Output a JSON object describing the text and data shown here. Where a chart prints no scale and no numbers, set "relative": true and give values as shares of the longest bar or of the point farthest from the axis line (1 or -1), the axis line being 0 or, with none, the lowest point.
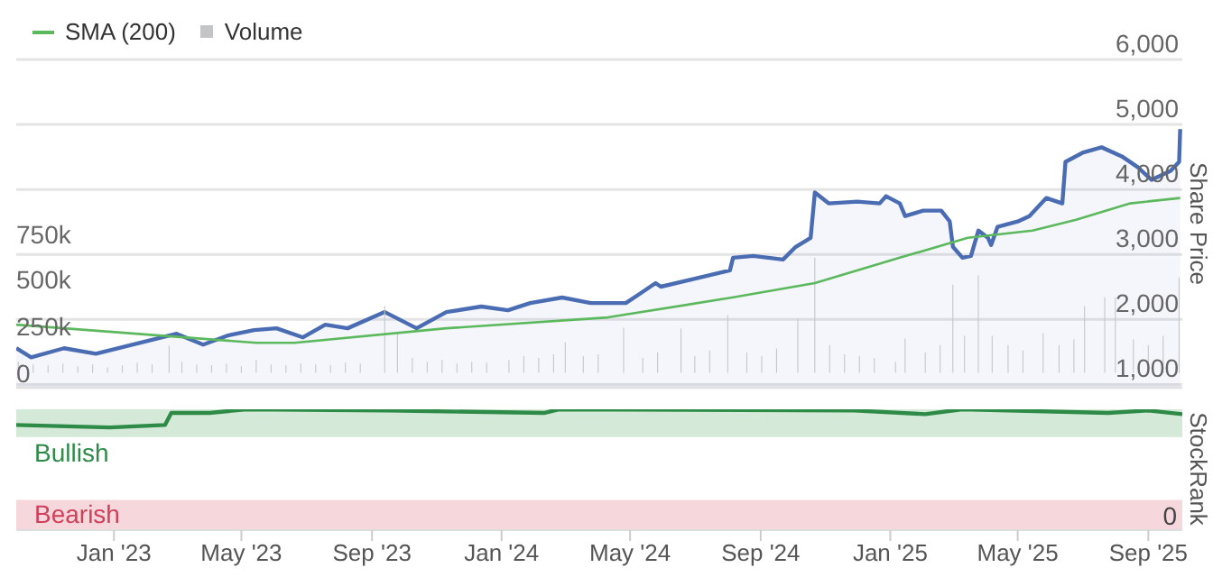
{
  "chart_data": [
    {
      "type": "line",
      "legend": "top left",
      "grid": "y2",
      "tick_labels": "y",
      "marker": "none",
      "y2label": "Share Price",
      "xlim": [
        "2022-10-01",
        "2025-10-03"
      ],
      "ylim": [
        -80000,
        1690000
      ],
      "yticks": [
        {
          "value": 0,
          "label": "0"
        },
        {
          "value": 250000,
          "label": "250k"
        },
        {
          "value": 500000,
          "label": "500k"
        },
        {
          "value": 750000,
          "label": "750k"
        }
      ],
      "y2lim": [
        950,
        6000
      ],
      "y2ticks": [
        {
          "value": 1000,
          "label": "1,000"
        },
        {
          "value": 2000,
          "label": "2,000"
        },
        {
          "value": 3000,
          "label": "3,000"
        },
        {
          "value": 4000,
          "label": "4,000"
        },
        {
          "value": 5000,
          "label": "5,000"
        },
        {
          "value": 6000,
          "label": "6,000"
        }
      ],
      "series": [
        {
          "name": "SMA (200)",
          "axis": "y2",
          "color": "#5cb85c",
          "x": [
            "2022-10-01",
            "2023-05-15",
            "2023-06-20",
            "2023-11-10",
            "2024-04-10",
            "2024-08-05",
            "2024-10-22",
            "2025-01-10",
            "2025-03-15",
            "2025-05-15",
            "2025-06-25",
            "2025-08-15",
            "2025-10-01"
          ],
          "values": [
            1919,
            1640,
            1640,
            1864,
            2031,
            2337,
            2560,
            2950,
            3256,
            3368,
            3535,
            3786,
            3869
          ]
        },
        {
          "name": "Volume",
          "type": "bar",
          "axis": "y",
          "color": "#c3c4c8",
          "x": [
            "2022-10-03",
            "2022-10-17",
            "2022-10-31",
            "2022-11-14",
            "2022-11-28",
            "2022-12-12",
            "2022-12-26",
            "2023-01-09",
            "2023-01-23",
            "2023-02-06",
            "2023-02-22",
            "2023-03-06",
            "2023-03-20",
            "2023-04-03",
            "2023-04-17",
            "2023-05-01",
            "2023-05-15",
            "2023-05-29",
            "2023-06-12",
            "2023-06-26",
            "2023-07-10",
            "2023-07-24",
            "2023-08-07",
            "2023-08-21",
            "2023-09-13",
            "2023-09-25",
            "2023-10-09",
            "2023-10-23",
            "2023-11-06",
            "2023-11-20",
            "2023-12-04",
            "2023-12-18",
            "2024-01-08",
            "2024-01-22",
            "2024-02-05",
            "2024-02-19",
            "2024-03-01",
            "2024-03-18",
            "2024-04-01",
            "2024-04-25",
            "2024-05-13",
            "2024-05-27",
            "2024-06-18",
            "2024-07-01",
            "2024-07-15",
            "2024-08-01",
            "2024-08-19",
            "2024-09-02",
            "2024-09-16",
            "2024-10-06",
            "2024-10-22",
            "2024-11-05",
            "2024-11-19",
            "2024-12-03",
            "2024-12-17",
            "2025-01-06",
            "2025-01-15",
            "2025-02-03",
            "2025-02-17",
            "2025-03-01",
            "2025-03-12",
            "2025-03-25",
            "2025-04-07",
            "2025-04-22",
            "2025-05-06",
            "2025-05-25",
            "2025-06-09",
            "2025-06-23",
            "2025-07-03",
            "2025-07-22",
            "2025-08-01",
            "2025-08-18",
            "2025-09-01",
            "2025-09-15",
            "2025-09-30"
          ],
          "values": [
            60000,
            45000,
            40000,
            50000,
            35000,
            45000,
            30000,
            40000,
            55000,
            45000,
            146000,
            60000,
            45000,
            40000,
            50000,
            35000,
            70000,
            45000,
            40000,
            50000,
            45000,
            40000,
            55000,
            50000,
            360000,
            214000,
            80000,
            60000,
            70000,
            50000,
            60000,
            55000,
            70000,
            90000,
            80000,
            100000,
            165000,
            90000,
            100000,
            243000,
            80000,
            110000,
            240000,
            90000,
            120000,
            311000,
            110000,
            90000,
            130000,
            292000,
            622000,
            150000,
            100000,
            90000,
            80000,
            60000,
            185000,
            110000,
            150000,
            476000,
            200000,
            525000,
            200000,
            150000,
            120000,
            214000,
            150000,
            180000,
            360000,
            408000,
            408000,
            180000,
            150000,
            200000,
            515000
          ]
        },
        {
          "type": "area",
          "axis": "y2",
          "color": "#4a6cb3",
          "x": [
            "2022-10-01",
            "2022-10-15",
            "2022-11-15",
            "2022-12-15",
            "2023-01-25",
            "2023-03-01",
            "2023-03-26",
            "2023-04-18",
            "2023-05-13",
            "2023-06-03",
            "2023-06-28",
            "2023-07-19",
            "2023-08-09",
            "2023-09-13",
            "2023-10-13",
            "2023-11-10",
            "2023-12-13",
            "2024-01-07",
            "2024-01-28",
            "2024-02-27",
            "2024-03-25",
            "2024-04-12",
            "2024-04-27",
            "2024-05-10",
            "2024-05-25",
            "2024-05-30",
            "2024-08-03",
            "2024-08-06",
            "2024-08-25",
            "2024-09-22",
            "2024-10-04",
            "2024-10-18",
            "2024-10-22",
            "2024-11-04",
            "2024-12-01",
            "2024-12-22",
            "2024-12-28",
            "2025-01-10",
            "2025-01-15",
            "2025-02-01",
            "2025-02-18",
            "2025-02-26",
            "2025-03-01",
            "2025-03-10",
            "2025-03-18",
            "2025-03-25",
            "2025-04-03",
            "2025-04-06",
            "2025-04-12",
            "2025-05-01",
            "2025-05-12",
            "2025-05-28",
            "2025-06-12",
            "2025-06-15",
            "2025-07-01",
            "2025-07-19",
            "2025-08-07",
            "2025-08-22",
            "2025-09-04",
            "2025-09-22",
            "2025-09-30",
            "2025-10-01"
          ],
          "values": [
            1557,
            1418,
            1557,
            1473,
            1640,
            1780,
            1613,
            1752,
            1836,
            1864,
            1724,
            1919,
            1864,
            2114,
            1864,
            2114,
            2198,
            2142,
            2253,
            2337,
            2253,
            2253,
            2253,
            2393,
            2560,
            2504,
            2755,
            2950,
            2978,
            2922,
            3117,
            3256,
            3953,
            3786,
            3813,
            3786,
            3897,
            3786,
            3591,
            3674,
            3674,
            3507,
            3117,
            2950,
            2978,
            3368,
            3256,
            3145,
            3423,
            3507,
            3591,
            3869,
            3786,
            4426,
            4565,
            4649,
            4510,
            4343,
            4148,
            4287,
            4426,
            4928
          ]
        }
      ]
    },
    {
      "type": "line",
      "tick_labels": "x",
      "marker": "none",
      "ylabel": "StockRank",
      "relative": true,
      "annotations": [
        "0"
      ],
      "xlim": [
        "2022-10-01",
        "2025-10-03"
      ],
      "xticks": [
        {
          "value": "2023-01-01",
          "label": "Jan '23"
        },
        {
          "value": "2023-05-01",
          "label": "May '23"
        },
        {
          "value": "2023-09-01",
          "label": "Sep '23"
        },
        {
          "value": "2024-01-01",
          "label": "Jan '24"
        },
        {
          "value": "2024-05-01",
          "label": "May '24"
        },
        {
          "value": "2024-09-01",
          "label": "Sep '24"
        },
        {
          "value": "2025-01-01",
          "label": "Jan '25"
        },
        {
          "value": "2025-05-01",
          "label": "May '25"
        },
        {
          "value": "2025-09-01",
          "label": "Sep '25"
        }
      ],
      "bands": [
        {
          "axis": "y",
          "from": 0.77,
          "to": 1,
          "label": "Bullish",
          "color": "#d4e9d8"
        },
        {
          "axis": "y",
          "from": 0,
          "to": 0.25,
          "label": "Bearish",
          "color": "#f5d7dc"
        }
      ],
      "series": [
        {
          "color": "#2e8b47",
          "x": [
            "2022-10-01",
            "2022-12-28",
            "2023-02-18",
            "2023-02-24",
            "2023-04-01",
            "2023-05-06",
            "2023-09-15",
            "2024-02-10",
            "2024-02-24",
            "2024-11-28",
            "2025-02-03",
            "2025-03-10",
            "2025-07-25",
            "2025-09-01",
            "2025-10-03"
          ],
          "values": [
            0.87,
            0.85,
            0.87,
            0.97,
            0.97,
            1,
            0.99,
            0.97,
            1,
            0.99,
            0.96,
            1,
            0.97,
            0.99,
            0.96
          ]
        }
      ]
    }
  ]
}
